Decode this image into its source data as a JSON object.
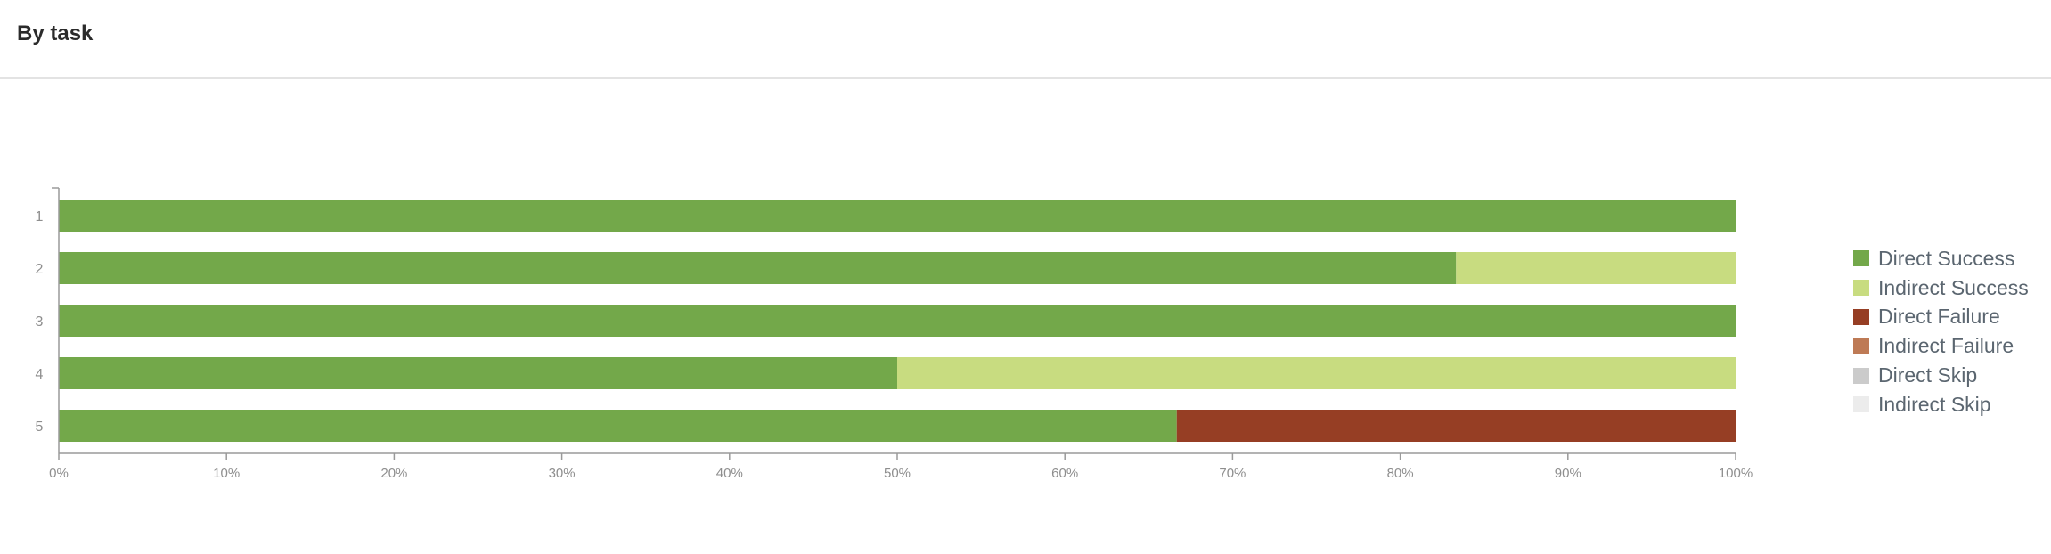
{
  "header": {
    "title": "By task"
  },
  "chart_data": {
    "type": "bar",
    "orientation": "horizontal",
    "stacked": true,
    "categories": [
      "1",
      "2",
      "3",
      "4",
      "5"
    ],
    "series": [
      {
        "name": "Direct Success",
        "color": "#73a84a",
        "values": [
          100,
          83.33,
          100,
          50,
          66.67
        ]
      },
      {
        "name": "Indirect Success",
        "color": "#c8dc80",
        "values": [
          0,
          16.67,
          0,
          50,
          0
        ]
      },
      {
        "name": "Direct Failure",
        "color": "#963e24",
        "values": [
          0,
          0,
          0,
          0,
          33.33
        ]
      },
      {
        "name": "Indirect Failure",
        "color": "#be7a55",
        "values": [
          0,
          0,
          0,
          0,
          0
        ]
      },
      {
        "name": "Direct Skip",
        "color": "#cbcbcb",
        "values": [
          0,
          0,
          0,
          0,
          0
        ]
      },
      {
        "name": "Indirect Skip",
        "color": "#ececec",
        "values": [
          0,
          0,
          0,
          0,
          0
        ]
      }
    ],
    "x_ticks": [
      "0%",
      "10%",
      "20%",
      "30%",
      "40%",
      "50%",
      "60%",
      "70%",
      "80%",
      "90%",
      "100%"
    ],
    "xlim": [
      0,
      100
    ],
    "xlabel": "",
    "ylabel": "",
    "grid": false,
    "legend_position": "right"
  }
}
